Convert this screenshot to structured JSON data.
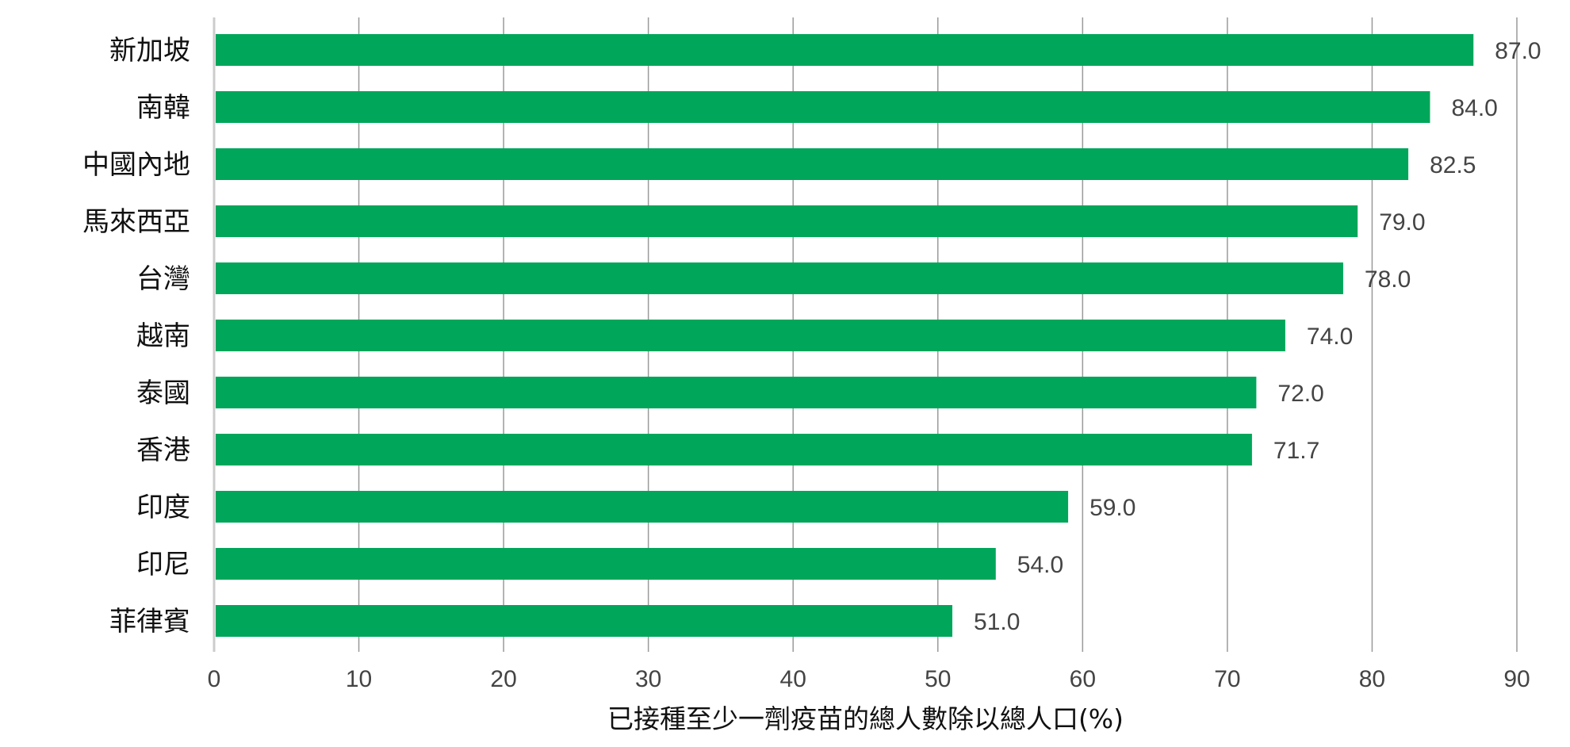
{
  "chart_data": {
    "type": "bar",
    "orientation": "horizontal",
    "categories": [
      "新加坡",
      "南韓",
      "中國內地",
      "馬來西亞",
      "台灣",
      "越南",
      "泰國",
      "香港",
      "印度",
      "印尼",
      "菲律賓"
    ],
    "values": [
      87.0,
      84.0,
      82.5,
      79.0,
      78.0,
      74.0,
      72.0,
      71.7,
      59.0,
      54.0,
      51.0
    ],
    "value_labels": [
      "87.0",
      "84.0",
      "82.5",
      "79.0",
      "78.0",
      "74.0",
      "72.0",
      "71.7",
      "59.0",
      "54.0",
      "51.0"
    ],
    "xlabel": "已接種至少一劑疫苗的總人數除以總人口(%)",
    "ylabel": "",
    "xlim": [
      0,
      90
    ],
    "x_ticks": [
      0,
      10,
      20,
      30,
      40,
      50,
      60,
      70,
      80,
      90
    ],
    "x_tick_labels": [
      "0",
      "10",
      "20",
      "30",
      "40",
      "50",
      "60",
      "70",
      "80",
      "90"
    ],
    "grid": "vertical",
    "legend": "none",
    "colors": {
      "bar": "#00a65a",
      "grid": "#9a9a9a",
      "axis": "#cccccc",
      "label": "#444444",
      "category": "#111111"
    }
  }
}
